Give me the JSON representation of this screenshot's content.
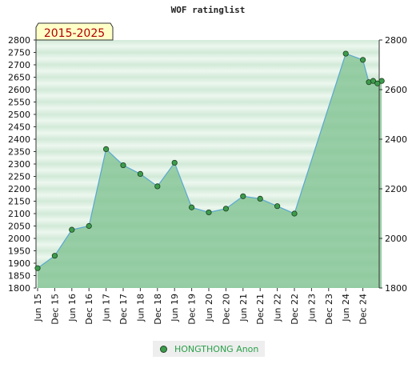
{
  "chart_data": {
    "type": "area",
    "title": "WOF ratinglist",
    "period_label": "2015-2025",
    "x_labels": [
      "Jun 15",
      "Dec 15",
      "Jun 16",
      "Dec 16",
      "Jun 17",
      "Dec 17",
      "Jun 18",
      "Dec 18",
      "Jun 19",
      "Dec 19",
      "Jun 20",
      "Dec 20",
      "Jun 21",
      "Dec 21",
      "Jun 22",
      "Dec 22",
      "Jun 23",
      "Dec 23",
      "Jun 24",
      "Dec 24"
    ],
    "y_left_ticks": [
      1800,
      1850,
      1900,
      1950,
      2000,
      2050,
      2100,
      2150,
      2200,
      2250,
      2300,
      2350,
      2400,
      2450,
      2500,
      2550,
      2600,
      2650,
      2700,
      2750,
      2800
    ],
    "y_right_ticks": [
      1800,
      2000,
      2200,
      2400,
      2600,
      2800
    ],
    "ylim": [
      1800,
      2800
    ],
    "series": [
      {
        "name": "HONGTHONG Anon",
        "x": [
          0,
          1,
          2,
          3,
          4,
          5,
          6,
          7,
          8,
          9,
          10,
          11,
          12,
          13,
          14,
          15,
          18,
          19,
          19.35,
          19.6,
          19.85,
          20.1
        ],
        "values": [
          1880,
          1930,
          2035,
          2050,
          2360,
          2295,
          2260,
          2210,
          2305,
          2125,
          2105,
          2120,
          2170,
          2160,
          2130,
          2100,
          2745,
          2720,
          2630,
          2635,
          2625,
          2635
        ]
      }
    ],
    "colors": {
      "line": "#5aa8d0",
      "fill": "#7cc08e",
      "marker": "#3c9c4c",
      "band_light": "#e6f4e9",
      "band_dark": "#b7dcc1",
      "legend_text": "#2aa04a"
    }
  },
  "legend": {
    "label": "HONGTHONG Anon"
  }
}
